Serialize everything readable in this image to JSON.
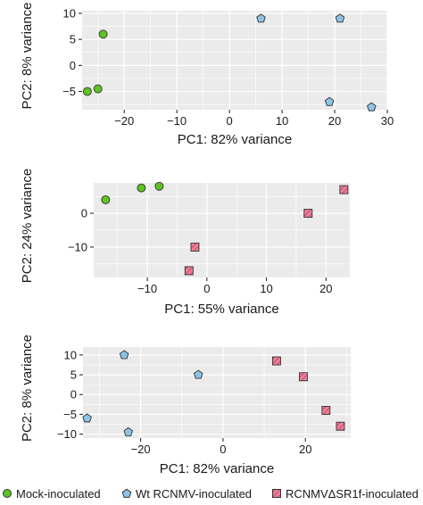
{
  "chart_data": [
    {
      "type": "scatter",
      "xlabel": "PC1: 82% variance",
      "ylabel": "PC2: 8% variance",
      "xlim": [
        -28,
        30
      ],
      "ylim": [
        -8.5,
        10.5
      ],
      "xticks": [
        -20,
        -10,
        0,
        10,
        20,
        30
      ],
      "yticks": [
        -5,
        0,
        5,
        10
      ],
      "grid": true,
      "series": [
        {
          "name": "Mock-inoculated",
          "marker": "circle",
          "color": "#5cc420",
          "points": [
            [
              -24,
              6
            ],
            [
              -27,
              -5
            ],
            [
              -25,
              -4.5
            ]
          ]
        },
        {
          "name": "Wt RCNMV-inoculated",
          "marker": "pentagon",
          "color": "#8ec3e6",
          "points": [
            [
              6,
              9
            ],
            [
              21,
              9
            ],
            [
              19,
              -7
            ],
            [
              27,
              -8
            ]
          ]
        }
      ]
    },
    {
      "type": "scatter",
      "xlabel": "PC1: 55% variance",
      "ylabel": "PC2: 24% variance",
      "xlim": [
        -19,
        24
      ],
      "ylim": [
        -19,
        9
      ],
      "xticks": [
        -10,
        0,
        10,
        20
      ],
      "yticks": [
        -10,
        0
      ],
      "grid": true,
      "series": [
        {
          "name": "Mock-inoculated",
          "marker": "circle",
          "color": "#5cc420",
          "points": [
            [
              -17,
              4
            ],
            [
              -11,
              7.5
            ],
            [
              -8,
              8
            ]
          ]
        },
        {
          "name": "RCNMVΔSR1f-inoculated",
          "marker": "square",
          "color": "#ee7f98",
          "points": [
            [
              23,
              7
            ],
            [
              17,
              0
            ],
            [
              -2,
              -10
            ],
            [
              -3,
              -17
            ]
          ]
        }
      ]
    },
    {
      "type": "scatter",
      "xlabel": "PC1: 82% variance",
      "ylabel": "PC2: 8% variance",
      "xlim": [
        -34,
        31
      ],
      "ylim": [
        -11,
        12
      ],
      "xticks": [
        -20,
        0,
        20
      ],
      "yticks": [
        -10,
        -5,
        0,
        5,
        10
      ],
      "grid": true,
      "series": [
        {
          "name": "Wt RCNMV-inoculated",
          "marker": "pentagon",
          "color": "#8ec3e6",
          "points": [
            [
              -24,
              10
            ],
            [
              -6,
              5
            ],
            [
              -33,
              -6
            ],
            [
              -23,
              -9.5
            ]
          ]
        },
        {
          "name": "RCNMVΔSR1f-inoculated",
          "marker": "square",
          "color": "#ee7f98",
          "points": [
            [
              13,
              8.5
            ],
            [
              19.5,
              4.5
            ],
            [
              25,
              -4
            ],
            [
              28.5,
              -8
            ]
          ]
        }
      ]
    }
  ],
  "legend": {
    "placement": "bottom",
    "items": [
      {
        "label": "Mock-inoculated",
        "marker": "circle",
        "color": "#5cc420"
      },
      {
        "label": "Wt RCNMV-inoculated",
        "marker": "pentagon",
        "color": "#8ec3e6"
      },
      {
        "label": "RCNMVΔSR1f-inoculated",
        "marker": "square",
        "color": "#ee7f98"
      }
    ]
  },
  "style": {
    "panel_background": "#ebebeb",
    "grid_color": "#ffffff",
    "axis_color": "#1a1a1a",
    "marker_outline": "#333333",
    "hatch_color": "#b03a55"
  }
}
